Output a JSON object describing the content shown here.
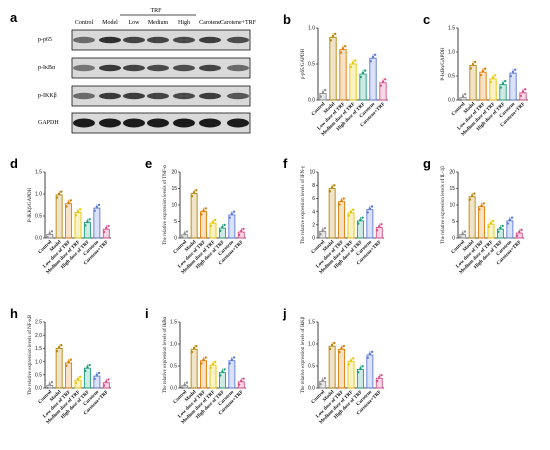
{
  "western_blot": {
    "panel_label": "a",
    "group_header": "TRF",
    "lanes": [
      "Control",
      "Model",
      "Low",
      "Medium",
      "High",
      "Carotene",
      "Carotene+TRF"
    ],
    "proteins": [
      "p-p65",
      "p-IκBα",
      "p-IKKβ",
      "GAPDH"
    ]
  },
  "colors": {
    "Control": "#8c8c8c",
    "Model": "#b8860b",
    "Low": "#e07b00",
    "Medium": "#e8c600",
    "High": "#1f9e7a",
    "Carotene": "#5b79d9",
    "Carotene+TRF": "#d84f8a"
  },
  "categories": [
    "Control",
    "Model",
    "Low dose of TRF",
    "Medium dose of TRF",
    "High dose of TRF",
    "Carotene",
    "Carotene+TRF"
  ],
  "chart_data": [
    {
      "type": "bar",
      "panel": "b",
      "ylabel": "p-p65/GAPDH",
      "ylim": [
        0,
        1.0
      ],
      "ticks": [
        0.0,
        0.5,
        1.0
      ],
      "values": [
        0.09,
        0.87,
        0.7,
        0.5,
        0.36,
        0.58,
        0.24
      ]
    },
    {
      "type": "bar",
      "panel": "c",
      "ylabel": "P-IκBα/GAPDH",
      "ylim": [
        0,
        1.5
      ],
      "ticks": [
        0.0,
        0.5,
        1.0,
        1.5
      ],
      "values": [
        0.05,
        0.72,
        0.58,
        0.44,
        0.32,
        0.56,
        0.15
      ]
    },
    {
      "type": "bar",
      "panel": "d",
      "ylabel": "P-IKKβ/GAPDH",
      "ylim": [
        0,
        1.5
      ],
      "ticks": [
        0.0,
        0.5,
        1.0,
        1.5
      ],
      "values": [
        0.08,
        0.98,
        0.78,
        0.58,
        0.35,
        0.68,
        0.2
      ]
    },
    {
      "type": "bar",
      "panel": "e",
      "ylabel": "The relative expression levels of TNF-α",
      "ylim": [
        0,
        20
      ],
      "ticks": [
        0,
        5,
        10,
        15,
        20
      ],
      "values": [
        1,
        13.5,
        8,
        4.5,
        3,
        7,
        1.8
      ]
    },
    {
      "type": "bar",
      "panel": "f",
      "ylabel": "The relative expression levels of IFN-γ",
      "ylim": [
        0,
        10
      ],
      "ticks": [
        0,
        2,
        4,
        6,
        8,
        10
      ],
      "values": [
        1,
        7.5,
        5.5,
        3.8,
        2.6,
        4.3,
        1.6
      ]
    },
    {
      "type": "bar",
      "panel": "g",
      "ylabel": "The relative expression levels of IL-1β",
      "ylim": [
        0,
        20
      ],
      "ticks": [
        0,
        5,
        10,
        15,
        20
      ],
      "values": [
        1,
        12.5,
        9.5,
        4.2,
        2.7,
        5.2,
        1.5
      ]
    },
    {
      "type": "bar",
      "panel": "h",
      "ylabel": "The relative expression levels of NF-κB",
      "ylim": [
        0,
        2.5
      ],
      "ticks": [
        0.0,
        0.5,
        1.0,
        1.5,
        2.0,
        2.5
      ],
      "values": [
        0.1,
        1.5,
        0.95,
        0.3,
        0.75,
        0.45,
        0.2
      ]
    },
    {
      "type": "bar",
      "panel": "i",
      "ylabel": "The relative expression levels of IkBα",
      "ylim": [
        0,
        1.5
      ],
      "ticks": [
        0.0,
        0.5,
        1.0,
        1.5
      ],
      "values": [
        0.05,
        0.88,
        0.62,
        0.52,
        0.35,
        0.62,
        0.14
      ]
    },
    {
      "type": "bar",
      "panel": "j",
      "ylabel": "The relative expression levels of IkKβ",
      "ylim": [
        0,
        1.5
      ],
      "ticks": [
        0.0,
        0.5,
        1.0,
        1.5
      ],
      "values": [
        0.15,
        0.95,
        0.88,
        0.6,
        0.42,
        0.75,
        0.22
      ]
    }
  ]
}
